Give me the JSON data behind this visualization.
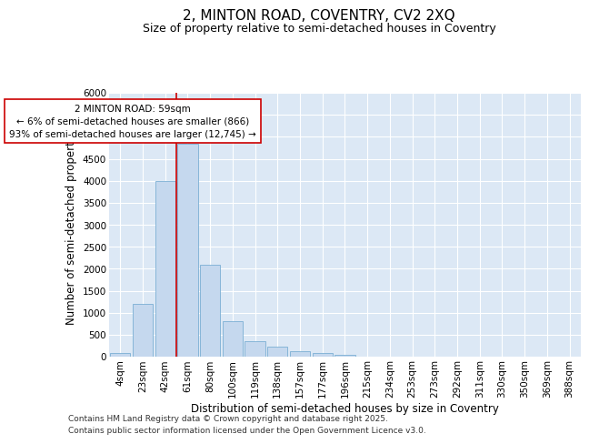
{
  "title_line1": "2, MINTON ROAD, COVENTRY, CV2 2XQ",
  "title_line2": "Size of property relative to semi-detached houses in Coventry",
  "xlabel": "Distribution of semi-detached houses by size in Coventry",
  "ylabel": "Number of semi-detached properties",
  "categories": [
    "4sqm",
    "23sqm",
    "42sqm",
    "61sqm",
    "80sqm",
    "100sqm",
    "119sqm",
    "138sqm",
    "157sqm",
    "177sqm",
    "196sqm",
    "215sqm",
    "234sqm",
    "253sqm",
    "273sqm",
    "292sqm",
    "311sqm",
    "330sqm",
    "350sqm",
    "369sqm",
    "388sqm"
  ],
  "values": [
    80,
    1200,
    4000,
    4850,
    2100,
    800,
    350,
    230,
    130,
    80,
    50,
    0,
    0,
    0,
    0,
    0,
    0,
    0,
    0,
    0,
    0
  ],
  "bar_color": "#c5d8ee",
  "bar_edgecolor": "#7bafd4",
  "vline_color": "#cc0000",
  "vline_x_index": 2.5,
  "annotation_text": "2 MINTON ROAD: 59sqm\n← 6% of semi-detached houses are smaller (866)\n93% of semi-detached houses are larger (12,745) →",
  "annotation_box_facecolor": "#ffffff",
  "annotation_box_edgecolor": "#cc0000",
  "ylim": [
    0,
    6000
  ],
  "yticks": [
    0,
    500,
    1000,
    1500,
    2000,
    2500,
    3000,
    3500,
    4000,
    4500,
    5000,
    5500,
    6000
  ],
  "background_color": "#dce8f5",
  "grid_color": "#ffffff",
  "footer_line1": "Contains HM Land Registry data © Crown copyright and database right 2025.",
  "footer_line2": "Contains public sector information licensed under the Open Government Licence v3.0.",
  "title_fontsize": 11,
  "subtitle_fontsize": 9,
  "axis_label_fontsize": 8.5,
  "tick_fontsize": 7.5,
  "footer_fontsize": 6.5
}
